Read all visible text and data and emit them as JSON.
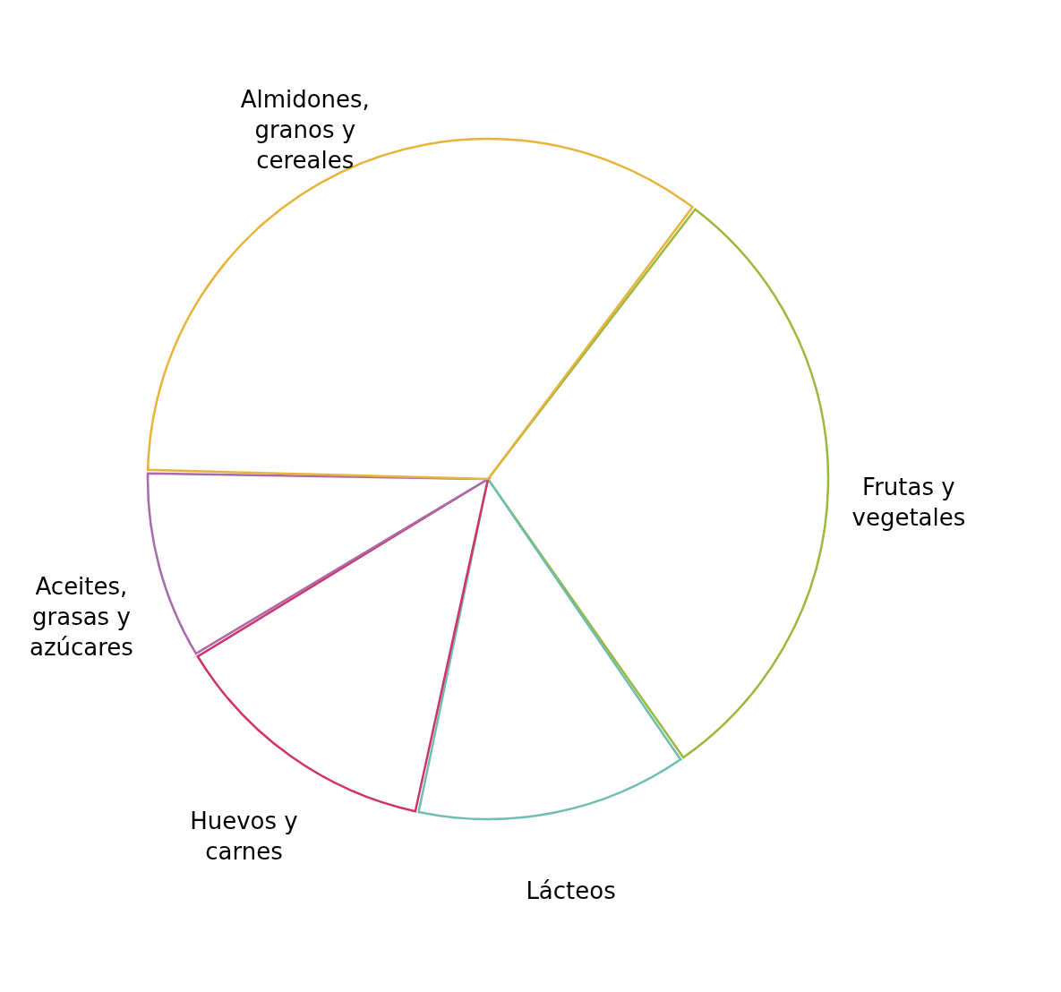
{
  "chart_data": {
    "type": "pie",
    "categories": [
      "Frutas y vegetales",
      "Lácteos",
      "Huevos y carnes",
      "Aceites, grasas y azúcares",
      "Almidones, granos y cereales"
    ],
    "values": [
      30,
      13,
      13,
      9,
      35
    ],
    "colors": [
      "#9ab83a",
      "#6dbdb0",
      "#d0336a",
      "#a86aa8",
      "#e8b33a"
    ],
    "legend": false
  }
}
